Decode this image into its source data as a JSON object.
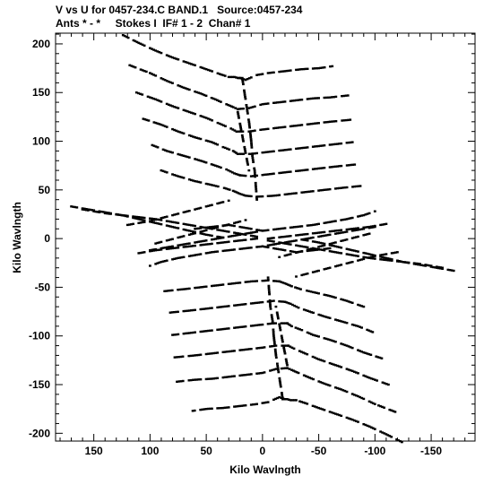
{
  "header": {
    "line1": "V vs U for 0457-234.C BAND.1   Source:0457-234",
    "line2": "Ants * - *     Stokes I  IF# 1 - 2  Chan# 1"
  },
  "chart_data": {
    "type": "scatter",
    "title": "V vs U for 0457-234.C BAND.1   Source:0457-234",
    "subtitle": "Ants * - *     Stokes I  IF# 1 - 2  Chan# 1",
    "xlabel": "Kilo Wavlngth",
    "ylabel": "Kilo Wavlngth",
    "xlim": [
      184,
      -189
    ],
    "ylim": [
      -208,
      211
    ],
    "x_ticks": [
      150,
      100,
      50,
      0,
      -50,
      -100,
      -150
    ],
    "y_ticks": [
      200,
      150,
      100,
      50,
      0,
      -50,
      -100,
      -150,
      -200
    ],
    "grid": false,
    "marker": "small black dots",
    "description_of_structure": "uv-coverage: dashed tracks forming two V-shaped (chevron) families above and below origin plus a horizontal bow-tie of tracks near V=0, point-symmetric about the origin",
    "series": [
      {
        "tracks": [
          {
            "u": [
              124,
              110,
              95,
              80,
              65,
              50,
              38,
              30,
              25,
              22,
              20
            ],
            "v": [
              209,
              201,
              193,
              186,
              180,
              174,
              169,
              166,
              166,
              165,
              165
            ]
          },
          {
            "u": [
              20,
              15,
              5,
              -5,
              -20,
              -35,
              -50,
              -62
            ],
            "v": [
              165,
              163,
              168,
              170,
              172,
              174,
              175,
              177
            ]
          },
          {
            "u": [
              118,
              100,
              85,
              70,
              55,
              42,
              32,
              26,
              22
            ],
            "v": [
              178,
              170,
              162,
              155,
              149,
              143,
              138,
              135,
              133
            ]
          },
          {
            "u": [
              22,
              12,
              0,
              -15,
              -30,
              -45,
              -60,
              -76
            ],
            "v": [
              133,
              134,
              138,
              140,
              142,
              144,
              145,
              147
            ]
          },
          {
            "u": [
              112,
              95,
              80,
              65,
              50,
              38,
              28,
              23
            ],
            "v": [
              150,
              143,
              136,
              130,
              124,
              118,
              113,
              110
            ]
          },
          {
            "u": [
              23,
              12,
              0,
              -15,
              -30,
              -45,
              -60,
              -78
            ],
            "v": [
              110,
              110,
              112,
              114,
              116,
              118,
              120,
              122
            ]
          },
          {
            "u": [
              106,
              90,
              75,
              60,
              45,
              35,
              26,
              22
            ],
            "v": [
              123,
              117,
              110,
              104,
              99,
              94,
              90,
              87
            ]
          },
          {
            "u": [
              22,
              10,
              -5,
              -20,
              -35,
              -50,
              -65,
              -80
            ],
            "v": [
              87,
              87,
              89,
              91,
              93,
              95,
              97,
              99
            ]
          },
          {
            "u": [
              98,
              85,
              70,
              55,
              42,
              32,
              25,
              20
            ],
            "v": [
              96,
              90,
              85,
              80,
              75,
              71,
              67,
              65
            ]
          },
          {
            "u": [
              20,
              10,
              -5,
              -20,
              -35,
              -50,
              -65,
              -82
            ],
            "v": [
              65,
              64,
              66,
              68,
              70,
              72,
              74,
              76
            ]
          },
          {
            "u": [
              90,
              75,
              60,
              45,
              34,
              26,
              20,
              15
            ],
            "v": [
              70,
              64,
              59,
              55,
              52,
              49,
              46,
              44
            ]
          },
          {
            "u": [
              15,
              5,
              -10,
              -25,
              -40,
              -55,
              -70,
              -87
            ],
            "v": [
              44,
              43,
              44,
              46,
              48,
              50,
              52,
              54
            ]
          },
          {
            "u": [
              18,
              16,
              14,
              12,
              10,
              9,
              7,
              6,
              5
            ],
            "v": [
              165,
              150,
              135,
              120,
              100,
              85,
              70,
              55,
              40
            ]
          },
          {
            "u": [
              22,
              20,
              18,
              16,
              14,
              12
            ],
            "v": [
              130,
              118,
              106,
              94,
              82,
              70
            ]
          },
          {
            "u": [
              160,
              150,
              140,
              125,
              110,
              95,
              80,
              65,
              50,
              35,
              20,
              5
            ],
            "v": [
              30,
              28,
              26,
              24,
              22,
              20,
              17,
              14,
              11,
              8,
              5,
              2
            ]
          },
          {
            "u": [
              170,
              155,
              140,
              125,
              110,
              95,
              80,
              65,
              50,
              35
            ],
            "v": [
              33,
              30,
              27,
              24,
              20,
              16,
              12,
              8,
              4,
              1
            ]
          },
          {
            "u": [
              120,
              110,
              100,
              90,
              80,
              70,
              60,
              50,
              40,
              30
            ],
            "v": [
              14,
              16,
              18,
              21,
              24,
              27,
              30,
              33,
              36,
              39
            ]
          },
          {
            "u": [
              95,
              85,
              75,
              65,
              55,
              45,
              35,
              25,
              15
            ],
            "v": [
              -5,
              -2,
              1,
              4,
              7,
              10,
              13,
              16,
              19
            ]
          },
          {
            "u": [
              100,
              85,
              70,
              55,
              40,
              25,
              10
            ],
            "v": [
              -12,
              -9,
              -6,
              -3,
              0,
              3,
              6
            ]
          },
          {
            "u": [
              60,
              45,
              30,
              15,
              0
            ],
            "v": [
              10,
              12,
              14,
              11,
              8
            ]
          },
          {
            "u": [
              10,
              0,
              -15,
              -30,
              -45,
              -60,
              -75,
              -90,
              -100
            ],
            "v": [
              6,
              8,
              10,
              12,
              14,
              17,
              20,
              24,
              28
            ]
          },
          {
            "u": [
              -5,
              -20,
              -35,
              -50,
              -65,
              -80,
              -95,
              -110
            ],
            "v": [
              0,
              2,
              4,
              6,
              8,
              10,
              12,
              15
            ]
          }
        ]
      },
      {
        "tracks": [
          {
            "u": [
              -124,
              -110,
              -95,
              -80,
              -65,
              -50,
              -38,
              -30,
              -25,
              -22,
              -20
            ],
            "v": [
              -209,
              -201,
              -193,
              -186,
              -180,
              -174,
              -169,
              -166,
              -166,
              -165,
              -165
            ]
          },
          {
            "u": [
              -20,
              -15,
              -5,
              5,
              20,
              35,
              50,
              62
            ],
            "v": [
              -165,
              -163,
              -168,
              -170,
              -172,
              -174,
              -175,
              -177
            ]
          },
          {
            "u": [
              -118,
              -100,
              -85,
              -70,
              -55,
              -42,
              -32,
              -26,
              -22
            ],
            "v": [
              -178,
              -170,
              -162,
              -155,
              -149,
              -143,
              -138,
              -135,
              -133
            ]
          },
          {
            "u": [
              -22,
              -12,
              0,
              15,
              30,
              45,
              60,
              76
            ],
            "v": [
              -133,
              -134,
              -138,
              -140,
              -142,
              -144,
              -145,
              -147
            ]
          },
          {
            "u": [
              -112,
              -95,
              -80,
              -65,
              -50,
              -38,
              -28,
              -23
            ],
            "v": [
              -150,
              -143,
              -136,
              -130,
              -124,
              -118,
              -113,
              -110
            ]
          },
          {
            "u": [
              -23,
              -12,
              0,
              15,
              30,
              45,
              60,
              78
            ],
            "v": [
              -110,
              -110,
              -112,
              -114,
              -116,
              -118,
              -120,
              -122
            ]
          },
          {
            "u": [
              -106,
              -90,
              -75,
              -60,
              -45,
              -35,
              -26,
              -22
            ],
            "v": [
              -123,
              -117,
              -110,
              -104,
              -99,
              -94,
              -90,
              -87
            ]
          },
          {
            "u": [
              -22,
              -10,
              5,
              20,
              35,
              50,
              65,
              80
            ],
            "v": [
              -87,
              -87,
              -89,
              -91,
              -93,
              -95,
              -97,
              -99
            ]
          },
          {
            "u": [
              -98,
              -85,
              -70,
              -55,
              -42,
              -32,
              -25,
              -20
            ],
            "v": [
              -96,
              -90,
              -85,
              -80,
              -75,
              -71,
              -67,
              -65
            ]
          },
          {
            "u": [
              -20,
              -10,
              5,
              20,
              35,
              50,
              65,
              82
            ],
            "v": [
              -65,
              -64,
              -66,
              -68,
              -70,
              -72,
              -74,
              -76
            ]
          },
          {
            "u": [
              -90,
              -75,
              -60,
              -45,
              -34,
              -26,
              -20,
              -15
            ],
            "v": [
              -70,
              -64,
              -59,
              -55,
              -52,
              -49,
              -46,
              -44
            ]
          },
          {
            "u": [
              -15,
              -5,
              10,
              25,
              40,
              55,
              70,
              87
            ],
            "v": [
              -44,
              -43,
              -44,
              -46,
              -48,
              -50,
              -52,
              -54
            ]
          },
          {
            "u": [
              -18,
              -16,
              -14,
              -12,
              -10,
              -9,
              -7,
              -6,
              -5
            ],
            "v": [
              -165,
              -150,
              -135,
              -120,
              -100,
              -85,
              -70,
              -55,
              -40
            ]
          },
          {
            "u": [
              -22,
              -20,
              -18,
              -16,
              -14,
              -12
            ],
            "v": [
              -130,
              -118,
              -106,
              -94,
              -82,
              -70
            ]
          },
          {
            "u": [
              -160,
              -150,
              -140,
              -125,
              -110,
              -95,
              -80,
              -65,
              -50,
              -35,
              -20,
              -5
            ],
            "v": [
              -30,
              -28,
              -26,
              -24,
              -22,
              -20,
              -17,
              -14,
              -11,
              -8,
              -5,
              -2
            ]
          },
          {
            "u": [
              -170,
              -155,
              -140,
              -125,
              -110,
              -95,
              -80,
              -65,
              -50,
              -35
            ],
            "v": [
              -33,
              -30,
              -27,
              -24,
              -20,
              -16,
              -12,
              -8,
              -4,
              -1
            ]
          },
          {
            "u": [
              -120,
              -110,
              -100,
              -90,
              -80,
              -70,
              -60,
              -50,
              -40,
              -30
            ],
            "v": [
              -14,
              -16,
              -18,
              -21,
              -24,
              -27,
              -30,
              -33,
              -36,
              -39
            ]
          },
          {
            "u": [
              -95,
              -85,
              -75,
              -65,
              -55,
              -45,
              -35,
              -25,
              -15
            ],
            "v": [
              5,
              2,
              -1,
              -4,
              -7,
              -10,
              -13,
              -16,
              -19
            ]
          },
          {
            "u": [
              -100,
              -85,
              -70,
              -55,
              -40,
              -25,
              -10
            ],
            "v": [
              12,
              9,
              6,
              3,
              0,
              -3,
              -6
            ]
          },
          {
            "u": [
              -60,
              -45,
              -30,
              -15,
              0
            ],
            "v": [
              -10,
              -12,
              -14,
              -11,
              -8
            ]
          },
          {
            "u": [
              -10,
              0,
              15,
              30,
              45,
              60,
              75,
              90,
              100
            ],
            "v": [
              -6,
              -8,
              -10,
              -12,
              -14,
              -17,
              -20,
              -24,
              -28
            ]
          },
          {
            "u": [
              5,
              20,
              35,
              50,
              65,
              80,
              95,
              110
            ],
            "v": [
              0,
              -2,
              -4,
              -6,
              -8,
              -10,
              -12,
              -15
            ]
          }
        ]
      }
    ]
  }
}
